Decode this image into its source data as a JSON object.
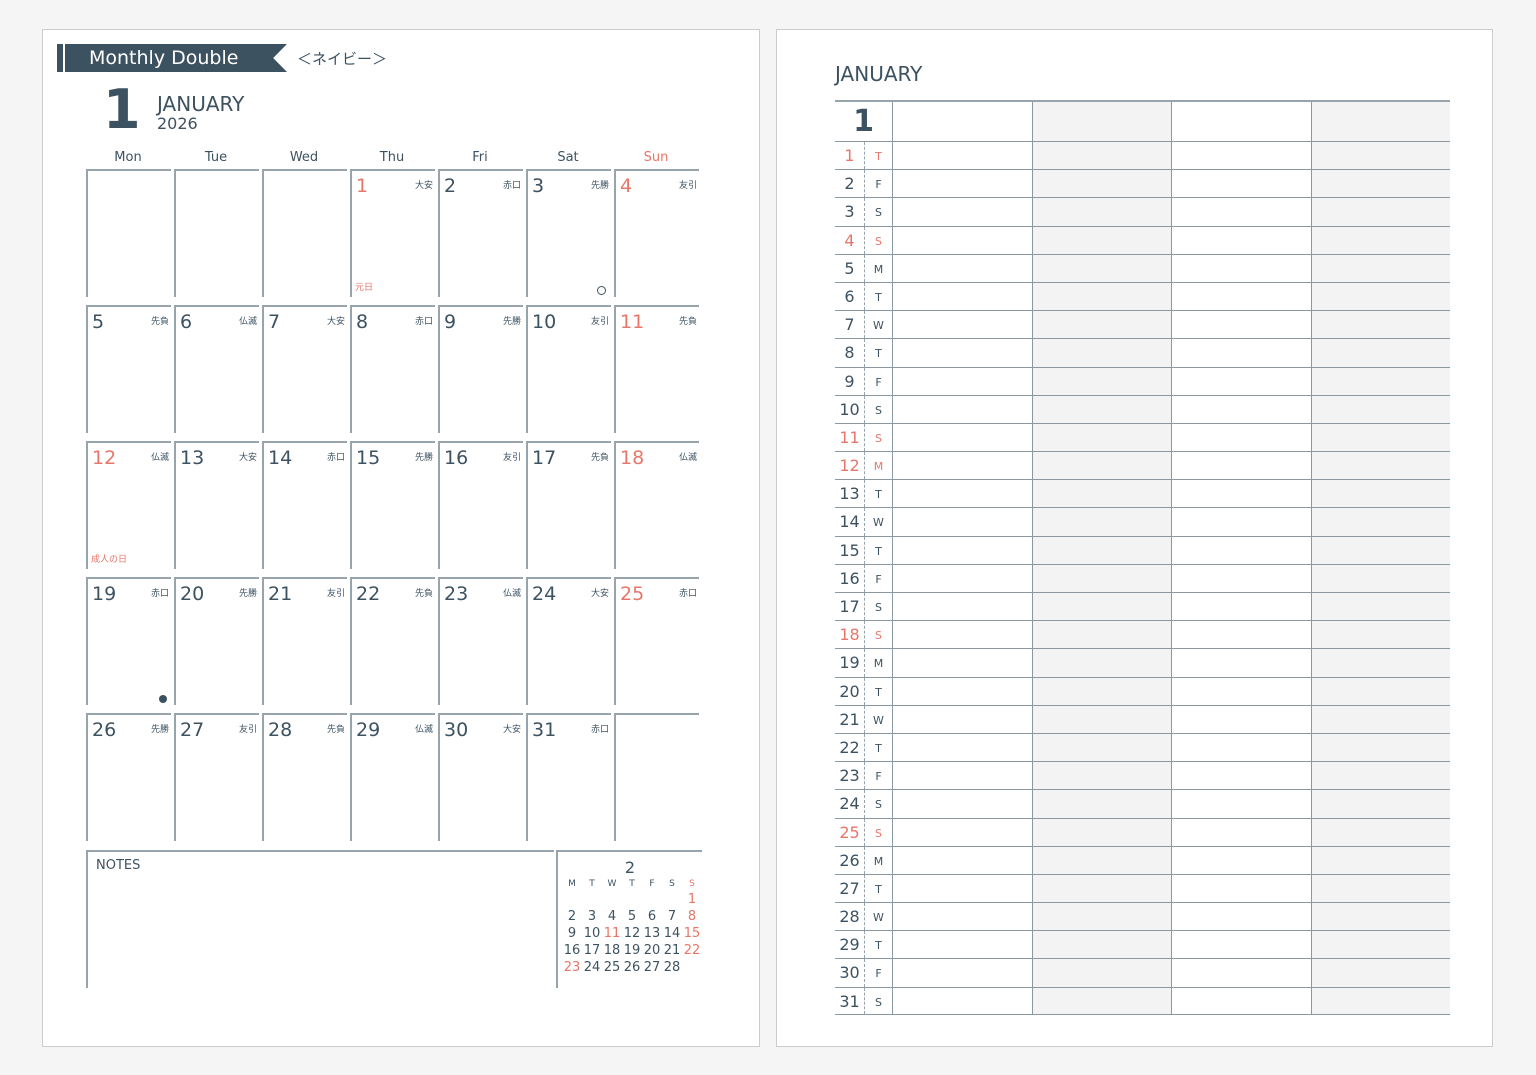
{
  "left": {
    "banner": "Monthly Double",
    "subtitle": "＜ネイビー＞",
    "month_num": "1",
    "month": "JANUARY",
    "year": "2026",
    "weekdays": [
      "Mon",
      "Tue",
      "Wed",
      "Thu",
      "Fri",
      "Sat",
      "Sun"
    ],
    "notes_label": "NOTES",
    "days": [
      {
        "d": "1",
        "r": "大安",
        "red": true,
        "h": "元日"
      },
      {
        "d": "2",
        "r": "赤口"
      },
      {
        "d": "3",
        "r": "先勝",
        "mark": "circle"
      },
      {
        "d": "4",
        "r": "友引",
        "red": true
      },
      {
        "d": "5",
        "r": "先負"
      },
      {
        "d": "6",
        "r": "仏滅"
      },
      {
        "d": "7",
        "r": "大安"
      },
      {
        "d": "8",
        "r": "赤口"
      },
      {
        "d": "9",
        "r": "先勝"
      },
      {
        "d": "10",
        "r": "友引"
      },
      {
        "d": "11",
        "r": "先負",
        "red": true
      },
      {
        "d": "12",
        "r": "仏滅",
        "red": true,
        "h": "成人の日"
      },
      {
        "d": "13",
        "r": "大安"
      },
      {
        "d": "14",
        "r": "赤口"
      },
      {
        "d": "15",
        "r": "先勝"
      },
      {
        "d": "16",
        "r": "友引"
      },
      {
        "d": "17",
        "r": "先負"
      },
      {
        "d": "18",
        "r": "仏滅",
        "red": true
      },
      {
        "d": "19",
        "r": "赤口",
        "mark": "dot"
      },
      {
        "d": "20",
        "r": "先勝"
      },
      {
        "d": "21",
        "r": "友引"
      },
      {
        "d": "22",
        "r": "先負"
      },
      {
        "d": "23",
        "r": "仏滅"
      },
      {
        "d": "24",
        "r": "大安"
      },
      {
        "d": "25",
        "r": "赤口",
        "red": true
      },
      {
        "d": "26",
        "r": "先勝"
      },
      {
        "d": "27",
        "r": "友引"
      },
      {
        "d": "28",
        "r": "先負"
      },
      {
        "d": "29",
        "r": "仏滅"
      },
      {
        "d": "30",
        "r": "大安"
      },
      {
        "d": "31",
        "r": "赤口"
      }
    ],
    "mini": {
      "month": "2",
      "headers": [
        "M",
        "T",
        "W",
        "T",
        "F",
        "S",
        "S"
      ],
      "cells": [
        "",
        "",
        "",
        "",
        "",
        "",
        "1",
        "2",
        "3",
        "4",
        "5",
        "6",
        "7",
        "8",
        "9",
        "10",
        "11",
        "12",
        "13",
        "14",
        "15",
        "16",
        "17",
        "18",
        "19",
        "20",
        "21",
        "22",
        "23",
        "24",
        "25",
        "26",
        "27",
        "28"
      ],
      "red": [
        "1",
        "8",
        "11",
        "15",
        "22",
        "23"
      ]
    }
  },
  "right": {
    "title": "JANUARY",
    "month_num": "1",
    "rows": [
      [
        "1",
        "T"
      ],
      [
        "2",
        "F"
      ],
      [
        "3",
        "S"
      ],
      [
        "4",
        "S"
      ],
      [
        "5",
        "M"
      ],
      [
        "6",
        "T"
      ],
      [
        "7",
        "W"
      ],
      [
        "8",
        "T"
      ],
      [
        "9",
        "F"
      ],
      [
        "10",
        "S"
      ],
      [
        "11",
        "S"
      ],
      [
        "12",
        "M"
      ],
      [
        "13",
        "T"
      ],
      [
        "14",
        "W"
      ],
      [
        "15",
        "T"
      ],
      [
        "16",
        "F"
      ],
      [
        "17",
        "S"
      ],
      [
        "18",
        "S"
      ],
      [
        "19",
        "M"
      ],
      [
        "20",
        "T"
      ],
      [
        "21",
        "W"
      ],
      [
        "22",
        "T"
      ],
      [
        "23",
        "F"
      ],
      [
        "24",
        "S"
      ],
      [
        "25",
        "S"
      ],
      [
        "26",
        "M"
      ],
      [
        "27",
        "T"
      ],
      [
        "28",
        "W"
      ],
      [
        "29",
        "T"
      ],
      [
        "30",
        "F"
      ],
      [
        "31",
        "S"
      ]
    ],
    "red_days": [
      "1",
      "4",
      "11",
      "12",
      "18",
      "25"
    ]
  },
  "colors": {
    "navy": "#3d5261",
    "red": "#e8766a",
    "shade": "#f3f3f3"
  }
}
